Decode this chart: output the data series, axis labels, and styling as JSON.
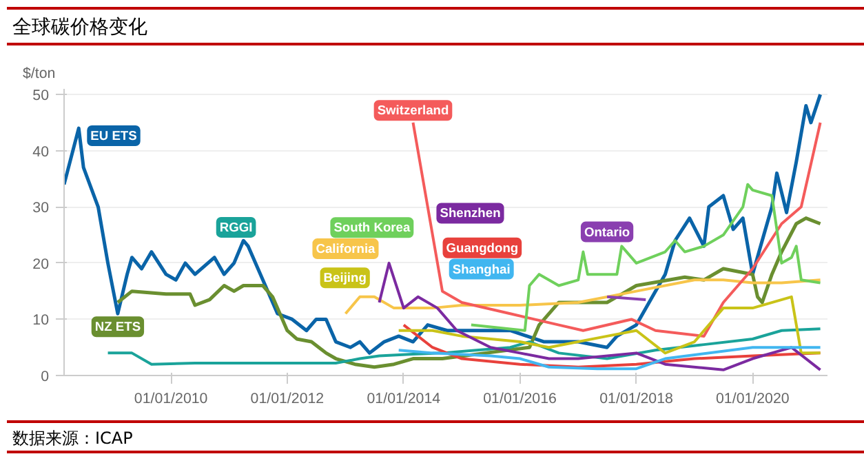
{
  "chart_data": {
    "type": "line",
    "title": "全球碳价格变化",
    "ylabel": "$/ton",
    "annotations": [
      "数据来源：ICAP"
    ],
    "xlim": [
      "2008-03-01",
      "2021-04-15"
    ],
    "xticks": [
      {
        "value": "2010-01-01",
        "label": "01/01/2010"
      },
      {
        "value": "2012-01-01",
        "label": "01/01/2012"
      },
      {
        "value": "2014-01-01",
        "label": "01/01/2014"
      },
      {
        "value": "2016-01-01",
        "label": "01/01/2016"
      },
      {
        "value": "2018-01-01",
        "label": "01/01/2018"
      },
      {
        "value": "2020-01-01",
        "label": "01/01/2020"
      }
    ],
    "ylim": [
      0,
      51
    ],
    "yticks": [
      0,
      10,
      20,
      30,
      40,
      50
    ],
    "grid": "y",
    "legend": false,
    "marker": "none",
    "line_style": "solid",
    "series": [
      {
        "name": "EU ETS",
        "color": "#0a64a8",
        "x": [
          "2008-03",
          "2008-06",
          "2008-07",
          "2008-10",
          "2008-12",
          "2009-02",
          "2009-04",
          "2009-05",
          "2009-07",
          "2009-09",
          "2009-12",
          "2010-02",
          "2010-04",
          "2010-06",
          "2010-10",
          "2010-12",
          "2011-02",
          "2011-04",
          "2011-05",
          "2011-08",
          "2011-09",
          "2011-11",
          "2012-02",
          "2012-05",
          "2012-07",
          "2012-09",
          "2012-11",
          "2013-02",
          "2013-04",
          "2013-06",
          "2013-09",
          "2013-12",
          "2014-03",
          "2014-06",
          "2014-10",
          "2015-06",
          "2015-11",
          "2016-06",
          "2017-01",
          "2017-07",
          "2017-09",
          "2018-01",
          "2018-05",
          "2018-07",
          "2018-09",
          "2018-12",
          "2019-03",
          "2019-04",
          "2019-07",
          "2019-09",
          "2019-11",
          "2020-01",
          "2020-03",
          "2020-05",
          "2020-06",
          "2020-08",
          "2020-10",
          "2020-12",
          "2021-01",
          "2021-03"
        ],
        "values": [
          34,
          44,
          37,
          30,
          20,
          11,
          18,
          21,
          19,
          22,
          18,
          17,
          20,
          18,
          21,
          18,
          20,
          24,
          23,
          17,
          15,
          11,
          10,
          8,
          10,
          10,
          6,
          5,
          6,
          4,
          6,
          7,
          6,
          9,
          8,
          8,
          8,
          6,
          6,
          5,
          7,
          9,
          15,
          18,
          24,
          28,
          23,
          30,
          32,
          26,
          28,
          18,
          24,
          30,
          36,
          29,
          38,
          48,
          45,
          50
        ]
      },
      {
        "name": "NZ ETS",
        "color": "#6a8f30",
        "x": [
          "2009-02",
          "2009-05",
          "2009-12",
          "2010-05",
          "2010-06",
          "2010-09",
          "2010-12",
          "2011-02",
          "2011-04",
          "2011-08",
          "2011-10",
          "2012-01",
          "2012-03",
          "2012-06",
          "2012-09",
          "2012-11",
          "2013-03",
          "2013-07",
          "2013-11",
          "2014-03",
          "2014-09",
          "2015-06",
          "2016-03",
          "2016-05",
          "2016-09",
          "2017-07",
          "2017-09",
          "2018-01",
          "2018-11",
          "2019-03",
          "2019-07",
          "2020-01",
          "2020-02",
          "2020-03",
          "2020-05",
          "2020-07",
          "2020-10",
          "2020-12",
          "2021-03"
        ],
        "values": [
          13,
          15,
          14.5,
          14.5,
          12.5,
          13.5,
          16,
          15,
          16,
          16,
          14,
          8,
          6.5,
          6,
          4,
          3,
          2,
          1.5,
          2,
          3,
          3,
          4,
          5,
          9,
          13,
          13,
          14,
          16,
          17.5,
          17,
          19,
          18,
          14,
          13,
          18,
          22,
          27,
          28,
          27
        ]
      },
      {
        "name": "RGGI",
        "color": "#1aa39a",
        "x": [
          "2008-12",
          "2009-05",
          "2009-09",
          "2010-06",
          "2012-11",
          "2013-04",
          "2013-08",
          "2014-03",
          "2014-09",
          "2015-11",
          "2016-03",
          "2016-09",
          "2017-07",
          "2018-05",
          "2019-03",
          "2020-01",
          "2020-07",
          "2021-03"
        ],
        "values": [
          4,
          4,
          2,
          2.2,
          2.2,
          3,
          3.5,
          3.8,
          4,
          5,
          6,
          4,
          3,
          4.5,
          5.5,
          6.5,
          8,
          8.3
        ]
      },
      {
        "name": "California",
        "color": "#f7c54a",
        "x": [
          "2013-01",
          "2013-04",
          "2013-07",
          "2013-11",
          "2014-07",
          "2015-01",
          "2016-01",
          "2017-01",
          "2018-01",
          "2019-01",
          "2019-07",
          "2020-01",
          "2020-07",
          "2021-03"
        ],
        "values": [
          11,
          14,
          14,
          12,
          12,
          12.5,
          12.5,
          13,
          15,
          17,
          17,
          16.5,
          16.5,
          17
        ]
      },
      {
        "name": "Switzerland",
        "color": "#f45b5b",
        "x": [
          "2014-03",
          "2014-09",
          "2015-01",
          "2015-11",
          "2016-09",
          "2017-02",
          "2017-12",
          "2018-05",
          "2019-03",
          "2019-07",
          "2020-01",
          "2020-07",
          "2020-11",
          "2021-03"
        ],
        "values": [
          45,
          15,
          13,
          11,
          9,
          8,
          10,
          8,
          7,
          13,
          19,
          27,
          30,
          45
        ]
      },
      {
        "name": "Guangdong",
        "color": "#e8413c",
        "x": [
          "2014-01",
          "2014-07",
          "2015-01",
          "2016-01",
          "2017-01",
          "2018-01",
          "2019-01",
          "2020-01",
          "2021-03"
        ],
        "values": [
          9,
          5,
          3,
          2,
          1.5,
          2,
          3,
          3.5,
          4
        ]
      },
      {
        "name": "Beijing",
        "color": "#c9c318",
        "x": [
          "2013-12",
          "2014-07",
          "2015-01",
          "2016-01",
          "2016-07",
          "2017-07",
          "2018-01",
          "2018-07",
          "2019-01",
          "2019-07",
          "2020-01",
          "2020-09",
          "2020-11",
          "2021-03"
        ],
        "values": [
          8,
          8,
          7,
          6,
          5,
          7,
          8,
          4,
          6,
          12,
          12,
          14,
          4,
          4
        ]
      },
      {
        "name": "South Korea",
        "color": "#6fd05c",
        "x": [
          "2015-03",
          "2016-02",
          "2016-03",
          "2016-05",
          "2016-09",
          "2017-01",
          "2017-02",
          "2017-03",
          "2017-04",
          "2017-09",
          "2017-10",
          "2018-01",
          "2018-07",
          "2018-09",
          "2018-11",
          "2019-03",
          "2019-07",
          "2019-11",
          "2019-12",
          "2020-01",
          "2020-05",
          "2020-06",
          "2020-07",
          "2020-09",
          "2020-10",
          "2020-11",
          "2021-03"
        ],
        "values": [
          9,
          8,
          16,
          18,
          16,
          17,
          22,
          18,
          18,
          18,
          23,
          20,
          22,
          24,
          22,
          23,
          25,
          30,
          34,
          33,
          32,
          26,
          20,
          21,
          23,
          17,
          16.5
        ]
      },
      {
        "name": "Shenzhen",
        "color": "#7b2aa0",
        "x": [
          "2013-08",
          "2013-10",
          "2014-01",
          "2014-04",
          "2014-08",
          "2014-12",
          "2015-07",
          "2016-01",
          "2016-07",
          "2017-01",
          "2018-01",
          "2018-07",
          "2019-07",
          "2020-01",
          "2020-09",
          "2021-03"
        ],
        "values": [
          13,
          20,
          12,
          14,
          12,
          8,
          5,
          4,
          3,
          3,
          4,
          2,
          1,
          3,
          5,
          1
        ]
      },
      {
        "name": "Shanghai",
        "color": "#41b6f0",
        "x": [
          "2013-12",
          "2014-07",
          "2015-07",
          "2016-01",
          "2016-07",
          "2017-05",
          "2018-01",
          "2018-07",
          "2020-01",
          "2021-03"
        ],
        "values": [
          4.5,
          4,
          3.5,
          3,
          1.5,
          1.2,
          1.2,
          3,
          5,
          5
        ]
      },
      {
        "name": "Ontario",
        "color": "#8a3fb0",
        "x": [
          "2017-07",
          "2018-03"
        ],
        "values": [
          14,
          13.5
        ]
      }
    ]
  }
}
